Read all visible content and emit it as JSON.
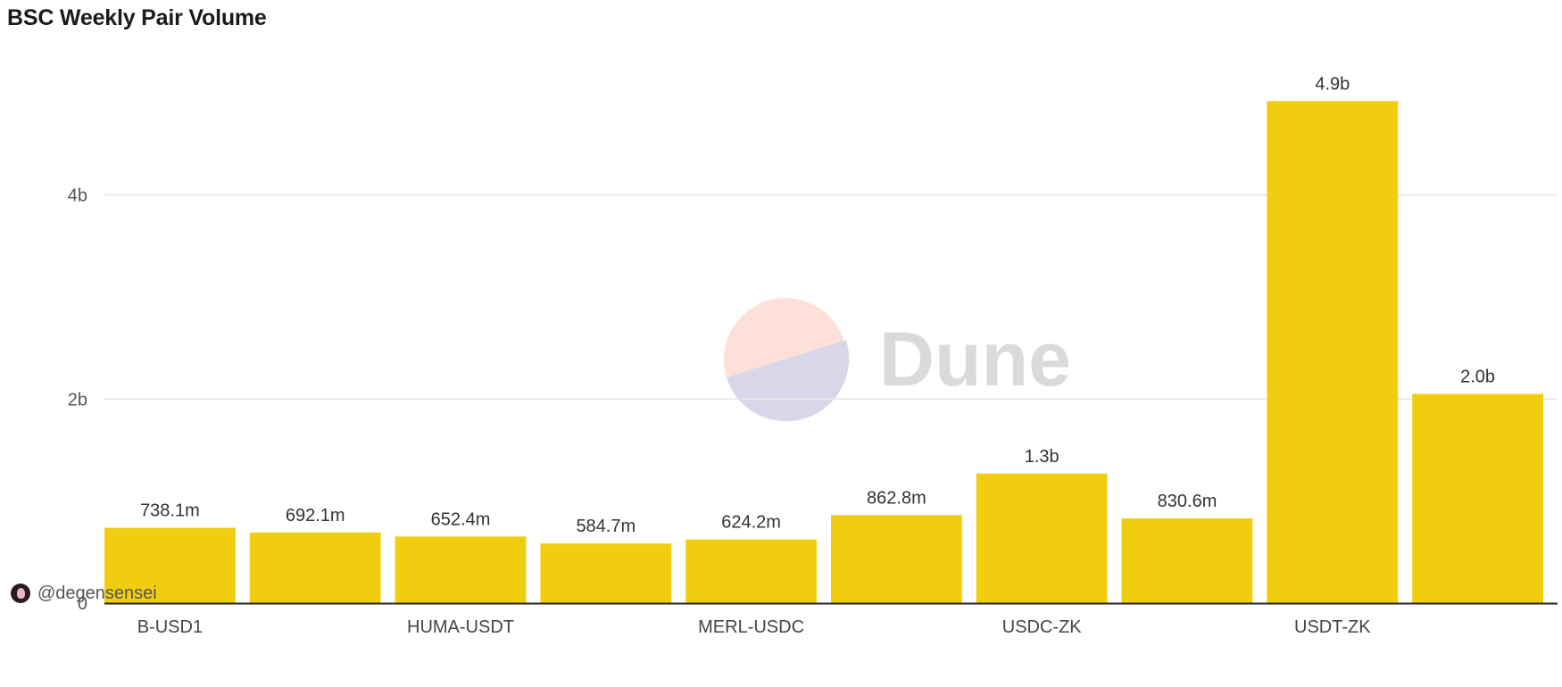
{
  "title": "BSC Weekly Pair Volume",
  "author": "@degensensei",
  "watermark": "Dune",
  "colors": {
    "bar": "#F0CE0F",
    "grid": "#e6e6e6",
    "axis": "#222222"
  },
  "chart_data": {
    "type": "bar",
    "title": "BSC Weekly Pair Volume",
    "xlabel": "",
    "ylabel": "",
    "ylim": [
      0,
      5150000000.0
    ],
    "grid": true,
    "yticks": [
      {
        "value": 0,
        "label": "0"
      },
      {
        "value": 2000000000,
        "label": "2b"
      },
      {
        "value": 4000000000,
        "label": "4b"
      }
    ],
    "categories": [
      "B-USD1",
      "",
      "HUMA-USDT",
      "",
      "MERL-USDC",
      "",
      "USDC-ZK",
      "",
      "USDT-ZK",
      ""
    ],
    "values": [
      738100000,
      692100000,
      652400000,
      584700000,
      624200000,
      862800000,
      1270000000,
      830600000,
      4920000000,
      2050000000
    ],
    "value_labels": [
      "738.1m",
      "692.1m",
      "652.4m",
      "584.7m",
      "624.2m",
      "862.8m",
      "1.3b",
      "830.6m",
      "4.9b",
      "2.0b"
    ]
  }
}
